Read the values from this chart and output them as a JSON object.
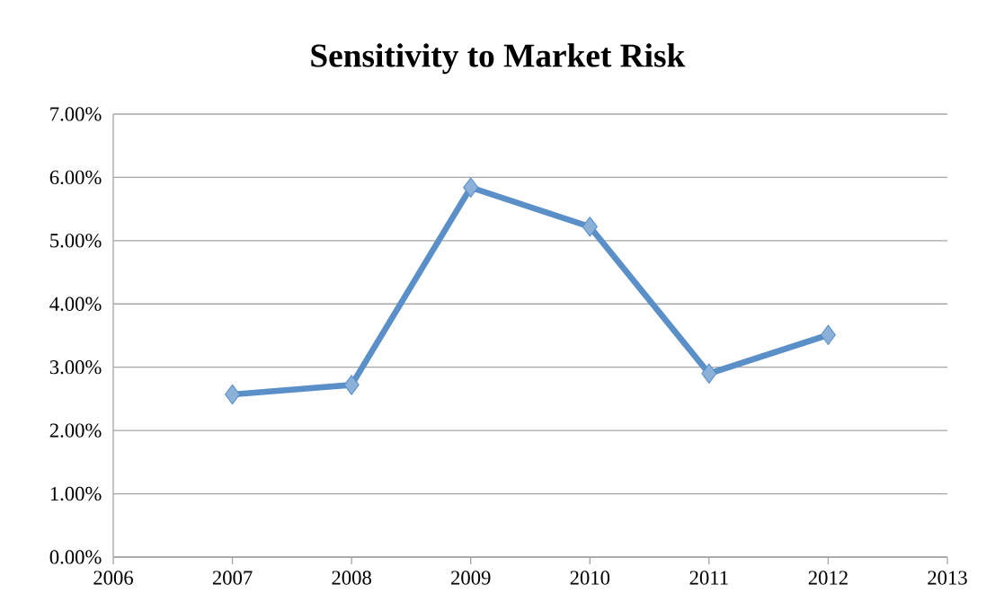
{
  "chart_data": {
    "type": "line",
    "title": "Sensitivity to Market Risk",
    "x": [
      2007,
      2008,
      2009,
      2010,
      2011,
      2012
    ],
    "series": [
      {
        "color": "#5a8fc8",
        "values": [
          0.0257,
          0.0272,
          0.0584,
          0.0522,
          0.029,
          0.0351
        ]
      }
    ],
    "xlim": [
      2006,
      2013
    ],
    "xticks": [
      2006,
      2007,
      2008,
      2009,
      2010,
      2011,
      2012,
      2013
    ],
    "ylim": [
      0,
      0.07
    ],
    "yticks": [
      {
        "value": 0,
        "label": "0.00%"
      },
      {
        "value": 0.01,
        "label": "1.00%"
      },
      {
        "value": 0.02,
        "label": "2.00%"
      },
      {
        "value": 0.03,
        "label": "3.00%"
      },
      {
        "value": 0.04,
        "label": "4.00%"
      },
      {
        "value": 0.05,
        "label": "5.00%"
      },
      {
        "value": 0.06,
        "label": "6.00%"
      },
      {
        "value": 0.07,
        "label": "7.00%"
      }
    ],
    "grid": "y",
    "marker": "diamond",
    "line_style": "solid"
  }
}
